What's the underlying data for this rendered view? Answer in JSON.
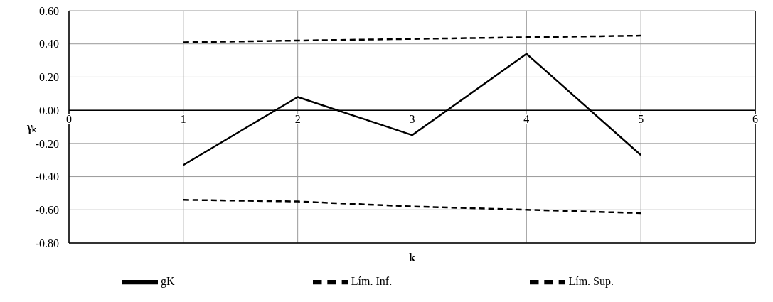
{
  "chart_data": {
    "type": "line",
    "xlabel": "k",
    "ylabel": "γₖ",
    "x": [
      1,
      2,
      3,
      4,
      5
    ],
    "series": [
      {
        "name": "gK",
        "color": "#000000",
        "values": [
          -0.33,
          0.08,
          -0.15,
          0.34,
          -0.27
        ],
        "line_style": "solid"
      },
      {
        "name": "Lím. Inf.",
        "color": "#000000",
        "values": [
          -0.54,
          -0.55,
          -0.58,
          -0.6,
          -0.62
        ],
        "line_style": "dashed"
      },
      {
        "name": "Lím. Sup.",
        "color": "#000000",
        "values": [
          0.41,
          0.42,
          0.43,
          0.44,
          0.45
        ],
        "line_style": "dashed"
      }
    ],
    "xlim": [
      0,
      6
    ],
    "xticks": [
      0,
      1,
      2,
      3,
      4,
      5,
      6
    ],
    "ylim": [
      -0.8,
      0.6
    ],
    "yticks": [
      {
        "value": -0.8,
        "label": "-0.80"
      },
      {
        "value": -0.6,
        "label": "-0.60"
      },
      {
        "value": -0.4,
        "label": "-0.40"
      },
      {
        "value": -0.2,
        "label": "-0.20"
      },
      {
        "value": 0,
        "label": "0.00"
      },
      {
        "value": 0.2,
        "label": "0.20"
      },
      {
        "value": 0.4,
        "label": "0.40"
      },
      {
        "value": 0.6,
        "label": "0.60"
      }
    ],
    "grid": true,
    "legend": "bottom",
    "marker": "none"
  }
}
